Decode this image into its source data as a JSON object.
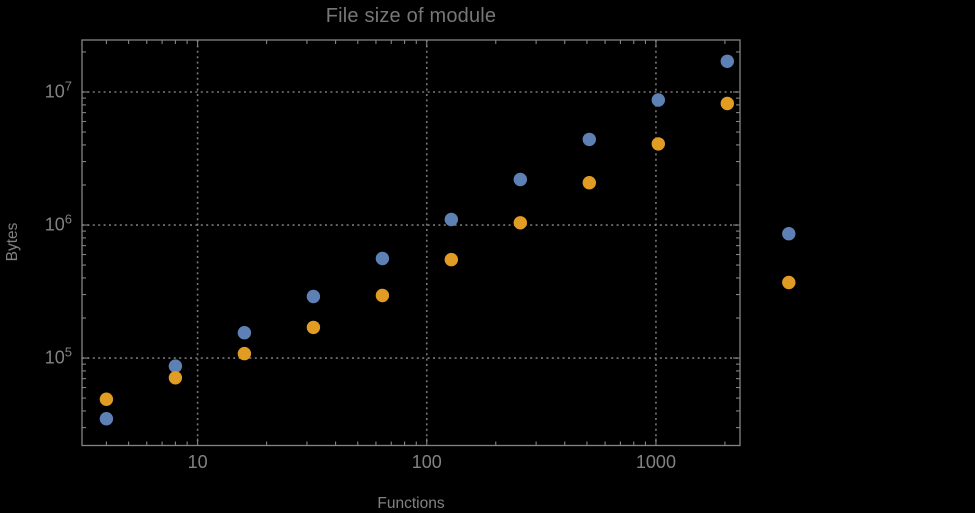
{
  "chart_data": {
    "type": "scatter",
    "title": "File size of module",
    "xlabel": "Functions",
    "ylabel": "Bytes",
    "x_scale": "log",
    "y_scale": "log",
    "xlim": [
      3.13,
      2327
    ],
    "ylim": [
      22000,
      24600000
    ],
    "x_ticks": [
      10,
      100,
      1000
    ],
    "x_tick_labels": [
      "10",
      "100",
      "1000"
    ],
    "y_ticks": [
      100000,
      1000000,
      10000000
    ],
    "y_tick_base": "10",
    "y_tick_exponents": [
      "5",
      "6",
      "7"
    ],
    "grid": "dotted lines at major ticks, frame on all four sides with inward log minor ticks",
    "legend": "none",
    "plot_range_clipping": false,
    "note": "last point of each series (x≈3800) is drawn outside the right edge of the plot frame",
    "series": [
      {
        "name": "blue",
        "color": "#5e81b5",
        "points": [
          [
            4,
            35000
          ],
          [
            8,
            87000
          ],
          [
            16,
            155000
          ],
          [
            32,
            290000
          ],
          [
            64,
            560000
          ],
          [
            128,
            1100000
          ],
          [
            256,
            2200000
          ],
          [
            512,
            4400000
          ],
          [
            1024,
            8700000
          ],
          [
            2048,
            17000000
          ],
          [
            3800,
            860000
          ]
        ]
      },
      {
        "name": "orange",
        "color": "#e19c24",
        "points": [
          [
            4,
            49000
          ],
          [
            8,
            71000
          ],
          [
            16,
            108000
          ],
          [
            32,
            170000
          ],
          [
            64,
            295000
          ],
          [
            128,
            550000
          ],
          [
            256,
            1040000
          ],
          [
            512,
            2080000
          ],
          [
            1024,
            4070000
          ],
          [
            2048,
            8200000
          ],
          [
            3800,
            370000
          ]
        ]
      }
    ]
  },
  "style": {
    "background": "#000000",
    "frame": "#848484",
    "grid": "#9a9a9a",
    "text": "#828282",
    "title": "#777777"
  }
}
